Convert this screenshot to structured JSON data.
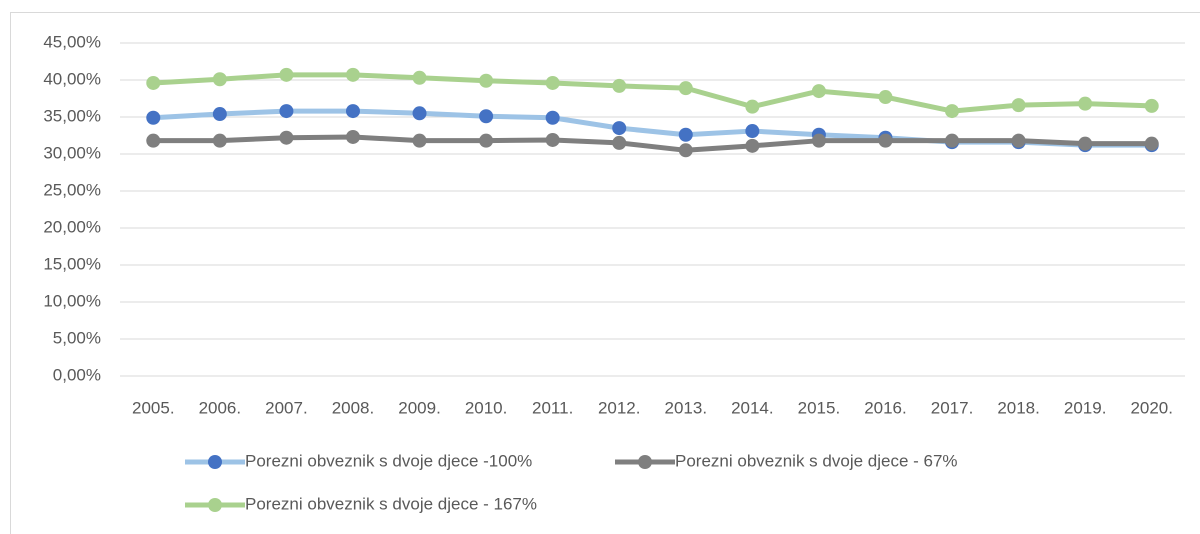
{
  "chart_data": {
    "type": "line",
    "categories": [
      "2005.",
      "2006.",
      "2007.",
      "2008.",
      "2009.",
      "2010.",
      "2011.",
      "2012.",
      "2013.",
      "2014.",
      "2015.",
      "2016.",
      "2017.",
      "2018.",
      "2019.",
      "2020."
    ],
    "series": [
      {
        "name": "Porezni obveznik s dvoje djece -100%",
        "color": "#9dc3e6",
        "marker_color": "#4472c4",
        "values": [
          34.9,
          35.4,
          35.8,
          35.8,
          35.5,
          35.1,
          34.9,
          33.5,
          32.6,
          33.1,
          32.6,
          32.2,
          31.6,
          31.6,
          31.2,
          31.2
        ]
      },
      {
        "name": "Porezni obveznik s dvoje djece - 67%",
        "color": "#7f7f7f",
        "marker_color": "#7f7f7f",
        "values": [
          31.8,
          31.8,
          32.2,
          32.3,
          31.8,
          31.8,
          31.9,
          31.5,
          30.5,
          31.1,
          31.8,
          31.8,
          31.8,
          31.8,
          31.4,
          31.4
        ]
      },
      {
        "name": "Porezni obveznik s dvoje djece - 167%",
        "color": "#a9d18e",
        "marker_color": "#a9d18e",
        "values": [
          39.6,
          40.1,
          40.7,
          40.7,
          40.3,
          39.9,
          39.6,
          39.2,
          38.9,
          36.4,
          38.5,
          37.7,
          35.8,
          36.6,
          36.8,
          36.5
        ]
      }
    ],
    "ylim": [
      0,
      45
    ],
    "yticks": [
      {
        "value": 0,
        "label": "0,00%"
      },
      {
        "value": 5,
        "label": "5,00%"
      },
      {
        "value": 10,
        "label": "10,00%"
      },
      {
        "value": 15,
        "label": "15,00%"
      },
      {
        "value": 20,
        "label": "20,00%"
      },
      {
        "value": 25,
        "label": "25,00%"
      },
      {
        "value": 30,
        "label": "30,00%"
      },
      {
        "value": 35,
        "label": "35,00%"
      },
      {
        "value": 40,
        "label": "40,00%"
      },
      {
        "value": 45,
        "label": "45,00%"
      }
    ],
    "grid": true,
    "legend": "bottom"
  }
}
